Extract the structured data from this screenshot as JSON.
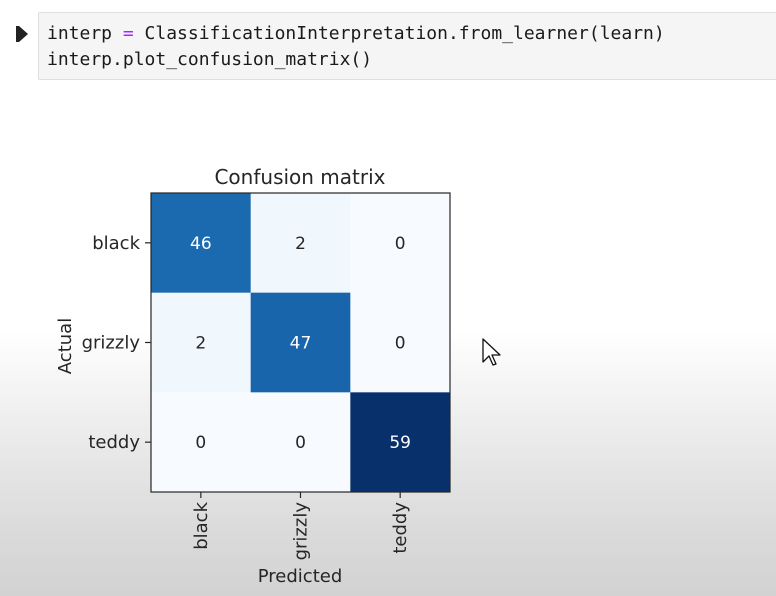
{
  "code_cell": {
    "line1": {
      "part1": "interp ",
      "op": "=",
      "part2": " ClassificationInterpretation.from_learner(learn)"
    },
    "line2": "interp.plot_confusion_matrix()"
  },
  "chart_data": {
    "type": "heatmap",
    "title": "Confusion matrix",
    "xlabel": "Predicted",
    "ylabel": "Actual",
    "x_categories": [
      "black",
      "grizzly",
      "teddy"
    ],
    "y_categories": [
      "black",
      "grizzly",
      "teddy"
    ],
    "values": [
      [
        46,
        2,
        0
      ],
      [
        2,
        47,
        0
      ],
      [
        0,
        0,
        59
      ]
    ],
    "colormap": "Blues",
    "vmin": 0,
    "vmax": 59,
    "colors": {
      "low": "#f7fbff",
      "high": "#08306b",
      "label_dark": "#262626",
      "label_light": "#ffffff"
    }
  },
  "icons": {
    "run": "run-indicator-icon",
    "cursor": "mouse-pointer-icon"
  }
}
